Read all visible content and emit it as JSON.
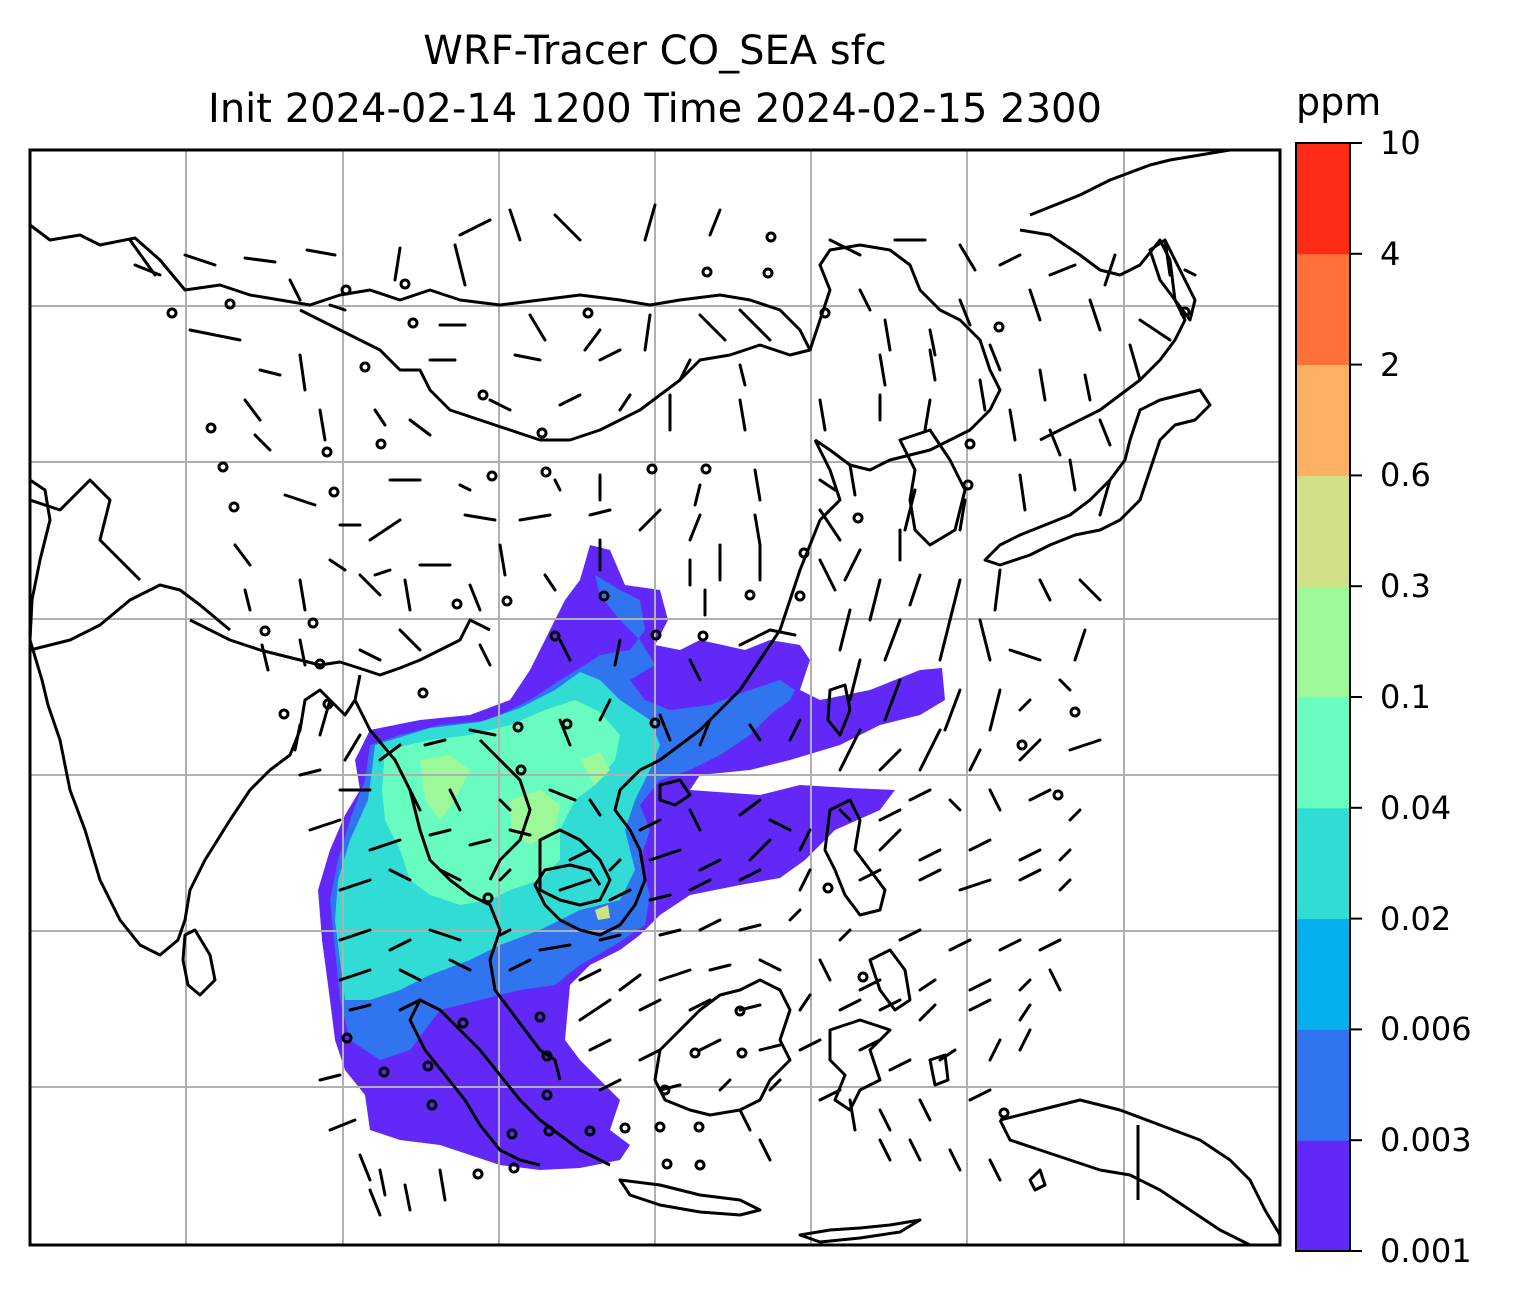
{
  "title": {
    "line1": "WRF-Tracer CO_SEA sfc",
    "line2": "Init 2024-02-14 1200 Time 2024-02-15 2300"
  },
  "colorbar": {
    "unit": "ppm",
    "levels": [
      "0.001",
      "0.003",
      "0.006",
      "0.02",
      "0.04",
      "0.1",
      "0.3",
      "0.6",
      "2",
      "4",
      "10"
    ],
    "colors": [
      "#6128f8",
      "#3174f0",
      "#03b0ec",
      "#31dcd4",
      "#68fcc0",
      "#9cf898",
      "#d0e086",
      "#fcb062",
      "#fe723a",
      "#fe2c16"
    ]
  },
  "map": {
    "coastline_color": "#000000",
    "gridline_color": "#b0b0b0",
    "wind_barb_color": "#000000"
  }
}
